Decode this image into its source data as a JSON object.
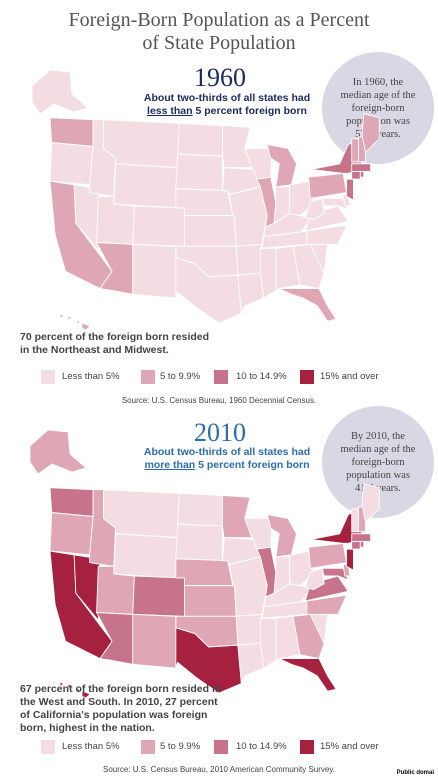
{
  "title_line1": "Foreign-Born Population as a Percent",
  "title_line2": "of State Population",
  "colors": {
    "lt5": "#f3dde3",
    "5to10": "#dfa6b5",
    "10to15": "#c7738b",
    "15plus": "#a6203f",
    "outline": "#ffffff"
  },
  "legend": [
    "Less than 5%",
    "5 to 9.9%",
    "10 to 14.9%",
    "15% and over"
  ],
  "p1960": {
    "year": "1960",
    "sub_pre": "About two-thirds of all states had",
    "sub_em": "less than",
    "sub_post": " 5 percent foreign born",
    "bubble": [
      "In 1960, the",
      "median age of the",
      "foreign-born",
      "population was",
      "57.3 years."
    ],
    "note": [
      "70 percent of the foreign born resided",
      "in the Northeast and Midwest."
    ],
    "source": "Source:  U.S. Census Bureau, 1960 Decennial Census.",
    "states": {
      "WA": "5to10",
      "MT": "lt5",
      "ND": "lt5",
      "MN": "lt5",
      "WI": "lt5",
      "MI": "5to10",
      "NY": "10to15",
      "VT": "5to10",
      "NH": "5to10",
      "ME": "5to10",
      "MA": "10to15",
      "RI": "10to15",
      "CT": "10to15",
      "NJ": "10to15",
      "OR": "lt5",
      "ID": "lt5",
      "WY": "lt5",
      "SD": "lt5",
      "IA": "lt5",
      "IL": "5to10",
      "IN": "lt5",
      "OH": "lt5",
      "PA": "5to10",
      "CA": "5to10",
      "NV": "lt5",
      "UT": "lt5",
      "CO": "lt5",
      "NE": "lt5",
      "MO": "lt5",
      "KY": "lt5",
      "WV": "lt5",
      "VA": "lt5",
      "MD": "lt5",
      "DE": "lt5",
      "AZ": "5to10",
      "NM": "lt5",
      "KS": "lt5",
      "OK": "lt5",
      "AR": "lt5",
      "TN": "lt5",
      "NC": "lt5",
      "SC": "lt5",
      "TX": "lt5",
      "LA": "lt5",
      "MS": "lt5",
      "AL": "lt5",
      "GA": "lt5",
      "FL": "5to10",
      "AK": "lt5",
      "HI": "5to10"
    }
  },
  "p2010": {
    "year": "2010",
    "sub_pre": "About two-thirds of all states had",
    "sub_em": "more than",
    "sub_post": " 5 percent foreign born",
    "bubble": [
      "By 2010, the",
      "median age of the",
      "foreign-born",
      "population was",
      "41.4 years."
    ],
    "note": [
      "67 percent of the foreign born resided in",
      "the West and South. In 2010, 27 percent",
      "of California's population was foreign",
      "born, highest in the nation."
    ],
    "source": "Source:  U.S. Census Bureau, 2010 American Community Survey.",
    "states": {
      "WA": "10to15",
      "MT": "lt5",
      "ND": "lt5",
      "MN": "5to10",
      "WI": "lt5",
      "MI": "5to10",
      "NY": "15plus",
      "VT": "lt5",
      "NH": "5to10",
      "ME": "lt5",
      "MA": "10to15",
      "RI": "10to15",
      "CT": "10to15",
      "NJ": "15plus",
      "OR": "5to10",
      "ID": "5to10",
      "WY": "lt5",
      "SD": "lt5",
      "IA": "lt5",
      "IL": "10to15",
      "IN": "lt5",
      "OH": "lt5",
      "PA": "5to10",
      "CA": "15plus",
      "NV": "15plus",
      "UT": "5to10",
      "CO": "10to15",
      "NE": "5to10",
      "MO": "lt5",
      "KY": "lt5",
      "WV": "lt5",
      "VA": "10to15",
      "MD": "10to15",
      "DE": "5to10",
      "AZ": "10to15",
      "NM": "5to10",
      "KS": "5to10",
      "OK": "5to10",
      "AR": "lt5",
      "TN": "lt5",
      "NC": "5to10",
      "SC": "lt5",
      "TX": "15plus",
      "LA": "lt5",
      "MS": "lt5",
      "AL": "lt5",
      "GA": "5to10",
      "FL": "15plus",
      "AK": "5to10",
      "HI": "15plus"
    }
  },
  "credit": "Public domai"
}
